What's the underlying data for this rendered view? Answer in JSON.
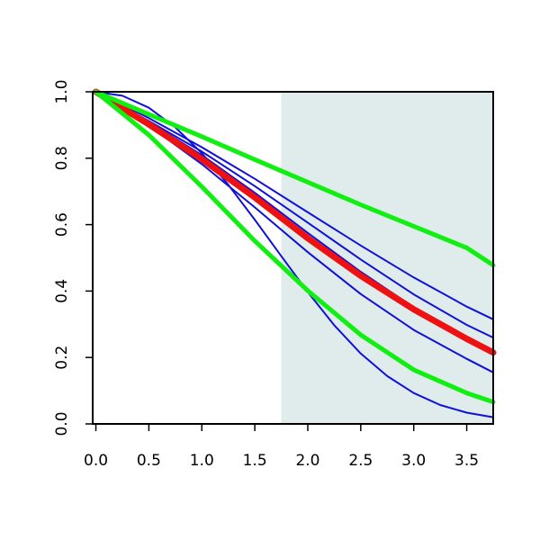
{
  "chart_data": {
    "type": "line",
    "title": "",
    "xlabel": "",
    "ylabel": "",
    "xlim": [
      -0.03,
      3.75
    ],
    "ylim": [
      0.0,
      1.0
    ],
    "grid": false,
    "x_ticks": [
      "0.0",
      "0.5",
      "1.0",
      "1.5",
      "2.0",
      "2.5",
      "3.0",
      "3.5"
    ],
    "y_ticks": [
      "0.0",
      "0.2",
      "0.4",
      "0.6",
      "0.8",
      "1.0"
    ],
    "shaded_region": {
      "x_from": 1.75,
      "x_to": 3.75,
      "color": "#dfeceb"
    },
    "colors": {
      "blue": "#1010d8",
      "red": "#ee1111",
      "green": "#11ee11",
      "axis": "#000000"
    },
    "series": [
      {
        "color": "#1010d8",
        "x": [
          0,
          0.25,
          0.5,
          0.75,
          1.0,
          1.25,
          1.5,
          1.75,
          2.0,
          2.25,
          2.5,
          2.75,
          3.0,
          3.25,
          3.5,
          3.75
        ],
        "y": [
          1.0,
          0.988,
          0.952,
          0.893,
          0.815,
          0.72,
          0.615,
          0.505,
          0.397,
          0.297,
          0.212,
          0.144,
          0.093,
          0.057,
          0.034,
          0.02
        ]
      },
      {
        "color": "#1010d8",
        "x": [
          0,
          0.5,
          1.0,
          1.5,
          2.0,
          2.5,
          3.0,
          3.5,
          3.75
        ],
        "y": [
          1.0,
          0.909,
          0.809,
          0.696,
          0.575,
          0.458,
          0.351,
          0.26,
          0.22
        ]
      },
      {
        "color": "#1010d8",
        "x": [
          0,
          0.5,
          1.0,
          1.5,
          2.0,
          2.5,
          3.0,
          3.5,
          3.75
        ],
        "y": [
          1.0,
          0.921,
          0.833,
          0.738,
          0.637,
          0.537,
          0.441,
          0.353,
          0.315
        ]
      },
      {
        "color": "#1010d8",
        "x": [
          0,
          0.5,
          1.0,
          1.5,
          2.0,
          2.5,
          3.0,
          3.5,
          3.75
        ],
        "y": [
          1.0,
          0.912,
          0.82,
          0.716,
          0.606,
          0.495,
          0.39,
          0.298,
          0.26
        ]
      },
      {
        "color": "#1010d8",
        "x": [
          0,
          0.5,
          1.0,
          1.5,
          2.0,
          2.5,
          3.0,
          3.5,
          3.75
        ],
        "y": [
          1.0,
          0.898,
          0.782,
          0.652,
          0.517,
          0.391,
          0.283,
          0.196,
          0.155
        ]
      },
      {
        "color": "#ee1111",
        "x": [
          0,
          0.5,
          1.0,
          1.5,
          2.0,
          2.5,
          3.0,
          3.5,
          3.75
        ],
        "y": [
          1.0,
          0.902,
          0.797,
          0.682,
          0.559,
          0.446,
          0.345,
          0.256,
          0.215
        ]
      },
      {
        "color": "#11ee11",
        "x": [
          0,
          0.5,
          1.0,
          1.5,
          2.0,
          2.5,
          3.0,
          3.5,
          3.75
        ],
        "y": [
          1.0,
          0.932,
          0.865,
          0.796,
          0.728,
          0.66,
          0.595,
          0.53,
          0.478
        ]
      },
      {
        "color": "#11ee11",
        "x": [
          0,
          0.5,
          1.0,
          1.5,
          2.0,
          2.5,
          3.0,
          3.5,
          3.75
        ],
        "y": [
          1.0,
          0.87,
          0.714,
          0.551,
          0.401,
          0.268,
          0.163,
          0.093,
          0.066
        ]
      }
    ]
  }
}
